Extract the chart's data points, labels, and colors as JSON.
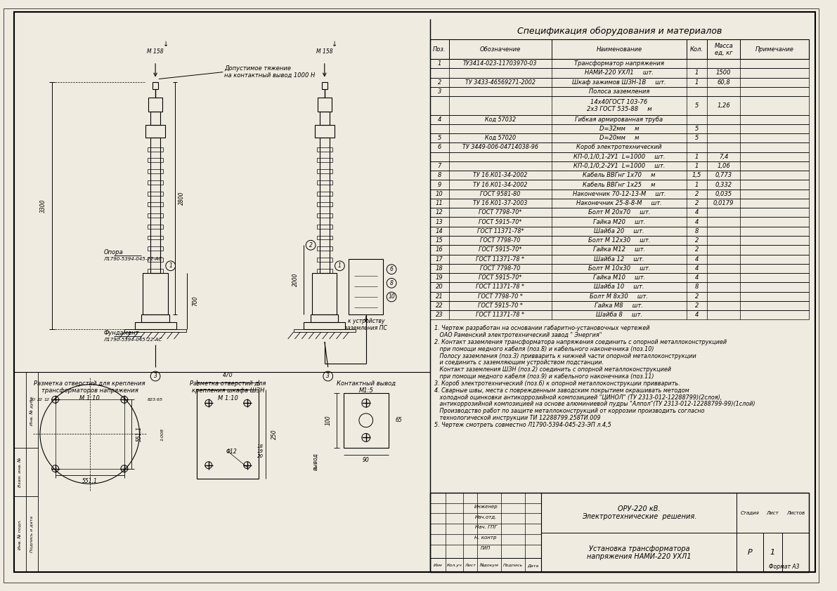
{
  "bg_color": "#f0ebe0",
  "lc": "#000000",
  "spec_title": "Спецификация оборудования и материалов",
  "spec_headers": [
    "Поз.",
    "Обозначение",
    "Наименование",
    "Кол.",
    "Масса\nед, кг",
    "Примечание"
  ],
  "spec_rows": [
    [
      "1",
      "ТУ3414-023-11703970-03",
      "Трансформатор напряжения",
      "",
      "",
      ""
    ],
    [
      "",
      "",
      "НАМИ-220 УХЛ1     шт.",
      "1",
      "1500",
      ""
    ],
    [
      "2",
      "ТУ 3433-46569271-2002",
      "Шкаф зажимов ШЗН-1В     шт.",
      "1",
      "60,8",
      ""
    ],
    [
      "3",
      "",
      "Полоса заземления",
      "",
      "",
      ""
    ],
    [
      "",
      "",
      "14х40ГОСТ 103-76\n2х3 ГОСТ 535-88     м",
      "5",
      "1,26",
      ""
    ],
    [
      "4",
      "Код 57032",
      "Гибкая армированная труба",
      "",
      "",
      ""
    ],
    [
      "",
      "",
      "D=32мм     м",
      "5",
      "",
      ""
    ],
    [
      "5",
      "Код 57020",
      "D=20мм     м",
      "5",
      "",
      ""
    ],
    [
      "6",
      "ТУ 3449-006-04714038-96",
      "Короб электротехнический",
      "",
      "",
      ""
    ],
    [
      "",
      "",
      "КП-0,1/0,1-2У1  L=1000     шт.",
      "1",
      "7,4",
      ""
    ],
    [
      "7",
      "",
      "КП-0,1/0,2-2У1  L=1000     шт.",
      "1",
      "1,06",
      ""
    ],
    [
      "8",
      "ТУ 16.К01-34-2002",
      "Кабель ВВГнг 1х70     м",
      "1,5",
      "0,773",
      ""
    ],
    [
      "9",
      "ТУ 16.К01-34-2002",
      "Кабель ВВГнг 1х25     м",
      "1",
      "0,332",
      ""
    ],
    [
      "10",
      "ГОСТ 9581-80",
      "Наконечник 70-12-13-М     шт.",
      "2",
      "0,035",
      ""
    ],
    [
      "11",
      "ТУ 16.К01-37-2003",
      "Наконечник 25-8-8-М     шт.",
      "2",
      "0,0179",
      ""
    ],
    [
      "12",
      "ГОСТ 7798-70*",
      "Болт М 20х70     шт.",
      "4",
      "",
      ""
    ],
    [
      "13",
      "ГОСТ 5915-70*",
      "Гайка М20     шт.",
      "4",
      "",
      ""
    ],
    [
      "14",
      "ГОСТ 11371-78*",
      "Шайба 20     шт.",
      "8",
      "",
      ""
    ],
    [
      "15",
      "ГОСТ 7798-70",
      "Болт М 12х30     шт.",
      "2",
      "",
      ""
    ],
    [
      "16",
      "ГОСТ 5915-70*",
      "Гайка М12     шт.",
      "2",
      "",
      ""
    ],
    [
      "17",
      "ГОСТ 11371-78 *",
      "Шайба 12     шт.",
      "4",
      "",
      ""
    ],
    [
      "18",
      "ГОСТ 7798-70",
      "Болт М 10х30     шт.",
      "4",
      "",
      ""
    ],
    [
      "19",
      "ГОСТ 5915-70*",
      "Гайка М10     шт.",
      "4",
      "",
      ""
    ],
    [
      "20",
      "ГОСТ 11371-78 *",
      "Шайба 10     шт.",
      "8",
      "",
      ""
    ],
    [
      "21",
      "ГОСТ 7798-70 *",
      "Болт М 8х30     шт.",
      "2",
      "",
      ""
    ],
    [
      "22",
      "ГОСТ 5915-70 *",
      "Гайка М8     шт.",
      "2",
      "",
      ""
    ],
    [
      "23",
      "ГОСТ 11371-78 *",
      "Шайба 8     шт.",
      "4",
      "",
      ""
    ]
  ],
  "notes": [
    "1. Чертеж разработан на основании габаритно-установочных чертежей",
    "   ОАО Раменский электротехнический завод \" Энергия\"",
    "2. Контакт заземления трансформатора напряжения соединить с опорной металлоконструкцией",
    "   при помощи медного кабеля (поз.8) и кабельного наконечника (поз.10)",
    "   Полосу заземления (поз.3) привварить к нижней части опорной металлоконструкции",
    "   и соединить с заземляющим устройством подстанции.",
    "   Контакт заземления ШЗН (поз.2) соединить с опорной металлоконструкцией",
    "   при помощи медного кабеля (поз.9) и кабельного наконечника (поз.11)",
    "3. Короб электротехнический (поз.6) к опорной металлоконструкции привварить.",
    "4. Сварные швы, места с поврежденным заводским покрытием окрашивать методом",
    "   холодной оцинковки антикоррозийной композицией \"ЦИНОЛ\" (ТУ 2313-012-12288799)(2слоя),",
    "   антикоррозийной композицией на основе алюминиевой пудры \"Алпол\"(ТУ 2313-012-12288799-99)(1слой)",
    "   Производство работ по защите металлоконструкций от коррозии производить согласно",
    "   технологической инструкции ТИ 12288799.258ТИ.009",
    "5. Чертеж смотреть совместно Л1790-5394-045-23-ЭП л.4,5"
  ],
  "title_block": {
    "org": "ОРУ-220 кВ.",
    "section": "Электротехнические  решения.",
    "stage": "Р",
    "sheet": "1",
    "drawing_title": "Установка трансформатора\nнапряжения НАМИ-220 УХЛ1",
    "format": "Формат А3",
    "roles": [
      "ГИП",
      "Н. контр",
      "Нач. ГПГ",
      "Нач.отд.",
      "Инженер"
    ]
  }
}
